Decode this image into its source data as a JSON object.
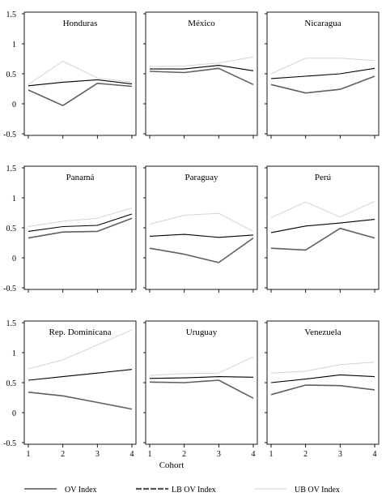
{
  "legend": {
    "items": [
      {
        "label": "OV Index",
        "color": "#000000",
        "dashed": false
      },
      {
        "label": "LB OV Index",
        "color": "#555555",
        "dashed": true
      },
      {
        "label": "UB OV Index",
        "color": "#d3d3d3",
        "dashed": false
      }
    ]
  },
  "chart_data": [
    {
      "type": "line",
      "title": "Honduras",
      "x": [
        1,
        2,
        3,
        4
      ],
      "ylim": [
        -0.5,
        1.5
      ],
      "series": [
        {
          "name": "OV Index",
          "values": [
            0.3,
            0.36,
            0.4,
            0.33
          ]
        },
        {
          "name": "LB OV Index",
          "values": [
            0.23,
            -0.03,
            0.34,
            0.29
          ]
        },
        {
          "name": "UB OV Index",
          "values": [
            0.32,
            0.71,
            0.43,
            0.36
          ]
        }
      ]
    },
    {
      "type": "line",
      "title": "México",
      "x": [
        1,
        2,
        3,
        4
      ],
      "ylim": [
        -0.5,
        1.5
      ],
      "series": [
        {
          "name": "OV Index",
          "values": [
            0.58,
            0.58,
            0.64,
            0.55
          ]
        },
        {
          "name": "LB OV Index",
          "values": [
            0.54,
            0.52,
            0.59,
            0.32
          ]
        },
        {
          "name": "UB OV Index",
          "values": [
            0.62,
            0.63,
            0.68,
            0.78
          ]
        }
      ]
    },
    {
      "type": "line",
      "title": "Nicaragua",
      "x": [
        1,
        2,
        3,
        4
      ],
      "ylim": [
        -0.5,
        1.5
      ],
      "series": [
        {
          "name": "OV Index",
          "values": [
            0.42,
            0.46,
            0.5,
            0.59
          ]
        },
        {
          "name": "LB OV Index",
          "values": [
            0.32,
            0.18,
            0.24,
            0.46
          ]
        },
        {
          "name": "UB OV Index",
          "values": [
            0.5,
            0.76,
            0.76,
            0.72
          ]
        }
      ]
    },
    {
      "type": "line",
      "title": "Panamá",
      "x": [
        1,
        2,
        3,
        4
      ],
      "ylim": [
        -0.5,
        1.5
      ],
      "series": [
        {
          "name": "OV Index",
          "values": [
            0.44,
            0.52,
            0.54,
            0.73
          ]
        },
        {
          "name": "LB OV Index",
          "values": [
            0.33,
            0.43,
            0.44,
            0.66
          ]
        },
        {
          "name": "UB OV Index",
          "values": [
            0.52,
            0.61,
            0.66,
            0.83
          ]
        }
      ]
    },
    {
      "type": "line",
      "title": "Paraguay",
      "x": [
        1,
        2,
        3,
        4
      ],
      "ylim": [
        -0.5,
        1.5
      ],
      "series": [
        {
          "name": "OV Index",
          "values": [
            0.36,
            0.39,
            0.34,
            0.38
          ]
        },
        {
          "name": "LB OV Index",
          "values": [
            0.16,
            0.06,
            -0.08,
            0.33
          ]
        },
        {
          "name": "UB OV Index",
          "values": [
            0.56,
            0.71,
            0.74,
            0.44
          ]
        }
      ]
    },
    {
      "type": "line",
      "title": "Perú",
      "x": [
        1,
        2,
        3,
        4
      ],
      "ylim": [
        -0.5,
        1.5
      ],
      "series": [
        {
          "name": "OV Index",
          "values": [
            0.42,
            0.53,
            0.58,
            0.64
          ]
        },
        {
          "name": "LB OV Index",
          "values": [
            0.16,
            0.13,
            0.49,
            0.33
          ]
        },
        {
          "name": "UB OV Index",
          "values": [
            0.67,
            0.93,
            0.68,
            0.94
          ]
        }
      ]
    },
    {
      "type": "line",
      "title": "Rep. Dominicana",
      "x": [
        1,
        2,
        3,
        4
      ],
      "ylim": [
        -0.5,
        1.5
      ],
      "series": [
        {
          "name": "OV Index",
          "values": [
            0.54,
            0.6,
            0.66,
            0.72
          ]
        },
        {
          "name": "LB OV Index",
          "values": [
            0.34,
            0.28,
            0.17,
            0.06
          ]
        },
        {
          "name": "UB OV Index",
          "values": [
            0.73,
            0.88,
            1.13,
            1.38
          ]
        }
      ]
    },
    {
      "type": "line",
      "title": "Uruguay",
      "x": [
        1,
        2,
        3,
        4
      ],
      "ylim": [
        -0.5,
        1.5
      ],
      "series": [
        {
          "name": "OV Index",
          "values": [
            0.57,
            0.58,
            0.6,
            0.59
          ]
        },
        {
          "name": "LB OV Index",
          "values": [
            0.51,
            0.5,
            0.54,
            0.24
          ]
        },
        {
          "name": "UB OV Index",
          "values": [
            0.62,
            0.65,
            0.66,
            0.93
          ]
        }
      ]
    },
    {
      "type": "line",
      "title": "Venezuela",
      "x": [
        1,
        2,
        3,
        4
      ],
      "ylim": [
        -0.5,
        1.5
      ],
      "series": [
        {
          "name": "OV Index",
          "values": [
            0.5,
            0.56,
            0.63,
            0.6
          ]
        },
        {
          "name": "LB OV Index",
          "values": [
            0.3,
            0.46,
            0.45,
            0.38
          ]
        },
        {
          "name": "UB OV Index",
          "values": [
            0.66,
            0.69,
            0.8,
            0.84
          ]
        }
      ]
    }
  ],
  "axes": {
    "y_ticks": [
      1.5,
      1,
      0.5,
      0,
      -0.5
    ],
    "y_tick_labels": [
      "1.5",
      "1",
      "0.5",
      "0",
      "-0.5"
    ],
    "x_ticks": [
      1,
      2,
      3,
      4
    ],
    "x_tick_labels": [
      "1",
      "2",
      "3",
      "4"
    ],
    "xlabel": "Cohort"
  }
}
